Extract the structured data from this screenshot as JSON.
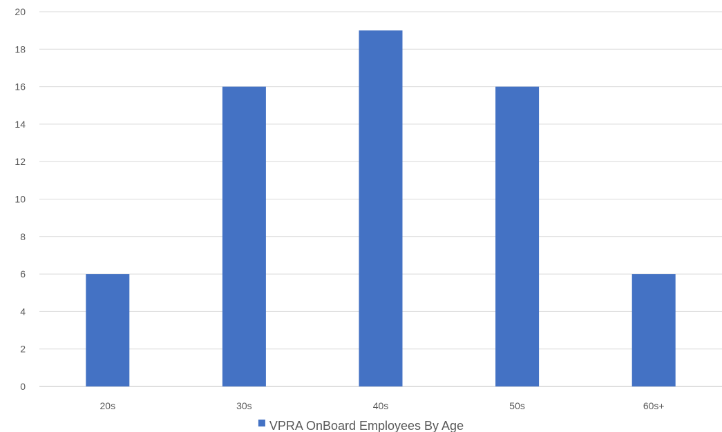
{
  "chart_data": {
    "type": "bar",
    "categories": [
      "20s",
      "30s",
      "40s",
      "50s",
      "60s+"
    ],
    "series": [
      {
        "name": "VPRA OnBoard Employees By Age",
        "values": [
          6,
          16,
          19,
          16,
          6
        ],
        "color": "#4472c4"
      }
    ],
    "title": "",
    "xlabel": "",
    "ylabel": "",
    "ylim": [
      0,
      20
    ],
    "yticks": [
      0,
      2,
      4,
      6,
      8,
      10,
      12,
      14,
      16,
      18,
      20
    ],
    "grid": true,
    "legend_position": "bottom"
  }
}
